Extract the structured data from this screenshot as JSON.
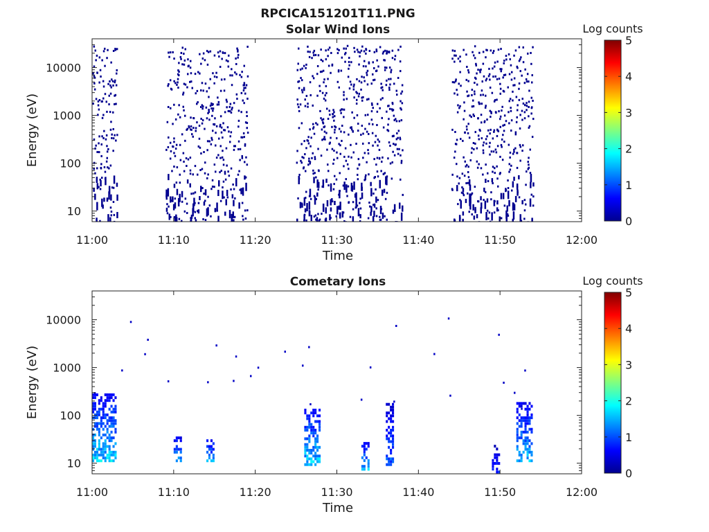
{
  "figure_title": "RPCICA151201T11.PNG",
  "colormap_stops": [
    "#00008f",
    "#0000ff",
    "#0080ff",
    "#00ffff",
    "#80ff80",
    "#ffff00",
    "#ff8000",
    "#ff0000",
    "#800000"
  ],
  "chart_data": [
    {
      "type": "heatmap",
      "title": "Solar Wind Ions",
      "xlabel": "Time",
      "ylabel": "Energy (eV)",
      "x_ticks": [
        "11:00",
        "11:10",
        "11:20",
        "11:30",
        "11:40",
        "11:50",
        "12:00"
      ],
      "x_range": [
        "11:00",
        "12:00"
      ],
      "y_scale": "log",
      "y_ticks": [
        "10",
        "100",
        "1000",
        "10000"
      ],
      "y_range": [
        6,
        40000
      ],
      "colorbar": {
        "label": "Log counts",
        "range": [
          0,
          5
        ],
        "ticks": [
          "0",
          "1",
          "2",
          "3",
          "4",
          "5"
        ]
      },
      "dominant_log_counts": 0,
      "active_intervals": [
        [
          "11:00",
          "11:03"
        ],
        [
          "11:09",
          "11:19"
        ],
        [
          "11:25",
          "11:38"
        ],
        [
          "11:44",
          "11:54"
        ]
      ],
      "energy_range_observed": [
        6,
        30000
      ]
    },
    {
      "type": "heatmap",
      "title": "Cometary Ions",
      "xlabel": "Time",
      "ylabel": "Energy (eV)",
      "x_ticks": [
        "11:00",
        "11:10",
        "11:20",
        "11:30",
        "11:40",
        "11:50",
        "12:00"
      ],
      "x_range": [
        "11:00",
        "12:00"
      ],
      "y_scale": "log",
      "y_ticks": [
        "10",
        "100",
        "1000",
        "10000"
      ],
      "y_range": [
        6,
        40000
      ],
      "colorbar": {
        "label": "Log counts",
        "range": [
          0,
          5
        ],
        "ticks": [
          "0",
          "1",
          "2",
          "3",
          "4",
          "5"
        ]
      },
      "max_log_counts": 2,
      "bursts": [
        {
          "time": [
            "11:00",
            "11:03"
          ],
          "energy_range": [
            12,
            300
          ],
          "peak_log_counts": 2
        },
        {
          "time": [
            "11:10",
            "11:11"
          ],
          "energy_range": [
            12,
            40
          ],
          "peak_log_counts": 1.7
        },
        {
          "time": [
            "11:14",
            "11:15"
          ],
          "energy_range": [
            12,
            40
          ],
          "peak_log_counts": 1.7
        },
        {
          "time": [
            "11:26",
            "11:28"
          ],
          "energy_range": [
            10,
            150
          ],
          "peak_log_counts": 2
        },
        {
          "time": [
            "11:33",
            "11:34"
          ],
          "energy_range": [
            8,
            30
          ],
          "peak_log_counts": 1.9
        },
        {
          "time": [
            "11:36",
            "11:37"
          ],
          "energy_range": [
            10,
            200
          ],
          "peak_log_counts": 1.3
        },
        {
          "time": [
            "11:49",
            "11:50"
          ],
          "energy_range": [
            7,
            25
          ],
          "peak_log_counts": 1
        },
        {
          "time": [
            "11:52",
            "11:54"
          ],
          "energy_range": [
            12,
            200
          ],
          "peak_log_counts": 1.8
        }
      ]
    }
  ]
}
